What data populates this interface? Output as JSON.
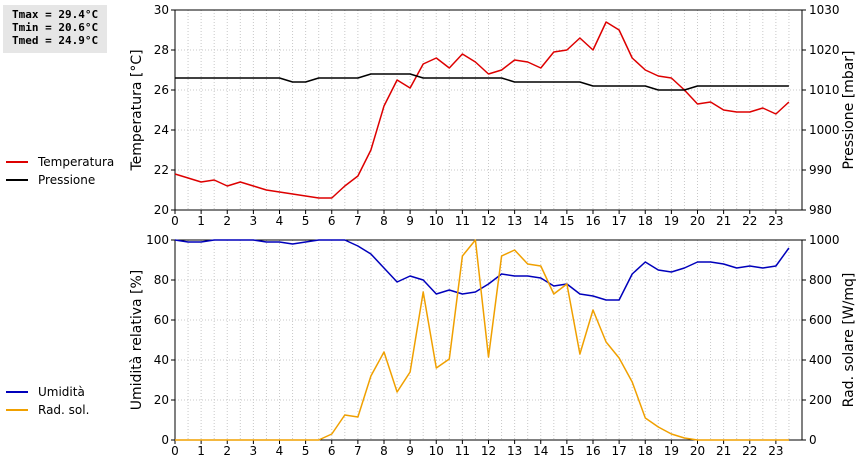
{
  "stats": {
    "tmax": "Tmax = 29.4°C",
    "tmin": "Tmin = 20.6°C",
    "tmed": "Tmed = 24.9°C"
  },
  "chart_data": [
    {
      "type": "line",
      "xlabel": "",
      "xlim": [
        0,
        24
      ],
      "x_ticks": [
        "0",
        "1",
        "2",
        "3",
        "4",
        "5",
        "6",
        "7",
        "8",
        "9",
        "10",
        "11",
        "12",
        "13",
        "14",
        "15",
        "16",
        "17",
        "18",
        "19",
        "20",
        "21",
        "22",
        "23"
      ],
      "y_left": {
        "label": "Temperatura [°C]",
        "lim": [
          20,
          30
        ],
        "ticks": [
          "20",
          "22",
          "24",
          "26",
          "28",
          "30"
        ]
      },
      "y_right": {
        "label": "Pressione [mbar]",
        "lim": [
          980,
          1030
        ],
        "ticks": [
          "980",
          "990",
          "1000",
          "1010",
          "1020",
          "1030"
        ]
      },
      "grid": true,
      "legend_placement": "left",
      "series": [
        {
          "name": "Temperatura",
          "axis": "left",
          "color": "#dd0000",
          "x": [
            0,
            0.5,
            1,
            1.5,
            2,
            2.5,
            3,
            3.5,
            4,
            4.5,
            5,
            5.5,
            6,
            6.5,
            7,
            7.5,
            8,
            8.5,
            9,
            9.5,
            10,
            10.5,
            11,
            11.5,
            12,
            12.5,
            13,
            13.5,
            14,
            14.5,
            15,
            15.5,
            16,
            16.5,
            17,
            17.5,
            18,
            18.5,
            19,
            19.5,
            20,
            20.5,
            21,
            21.5,
            22,
            22.5,
            23,
            23.5
          ],
          "values": [
            21.8,
            21.6,
            21.4,
            21.5,
            21.2,
            21.4,
            21.2,
            21.0,
            20.9,
            20.8,
            20.7,
            20.6,
            20.6,
            21.2,
            21.7,
            23.0,
            25.2,
            26.5,
            26.1,
            27.3,
            27.6,
            27.1,
            27.8,
            27.4,
            26.8,
            27.0,
            27.5,
            27.4,
            27.1,
            27.9,
            28.0,
            28.6,
            28.0,
            29.4,
            29.0,
            27.6,
            27.0,
            26.7,
            26.6,
            26.0,
            25.3,
            25.4,
            25.0,
            24.9,
            24.9,
            25.1,
            24.8,
            25.4
          ]
        },
        {
          "name": "Pressione",
          "axis": "right",
          "color": "#000000",
          "x": [
            0,
            0.5,
            1,
            1.5,
            2,
            2.5,
            3,
            3.5,
            4,
            4.5,
            5,
            5.5,
            6,
            6.5,
            7,
            7.5,
            8,
            8.5,
            9,
            9.5,
            10,
            10.5,
            11,
            11.5,
            12,
            12.5,
            13,
            13.5,
            14,
            14.5,
            15,
            15.5,
            16,
            16.5,
            17,
            17.5,
            18,
            18.5,
            19,
            19.5,
            20,
            20.5,
            21,
            21.5,
            22,
            22.5,
            23,
            23.5
          ],
          "values": [
            1013,
            1013,
            1013,
            1013,
            1013,
            1013,
            1013,
            1013,
            1013,
            1012,
            1012,
            1013,
            1013,
            1013,
            1013,
            1014,
            1014,
            1014,
            1014,
            1013,
            1013,
            1013,
            1013,
            1013,
            1013,
            1013,
            1012,
            1012,
            1012,
            1012,
            1012,
            1012,
            1011,
            1011,
            1011,
            1011,
            1011,
            1010,
            1010,
            1010,
            1011,
            1011,
            1011,
            1011,
            1011,
            1011,
            1011,
            1011
          ]
        }
      ]
    },
    {
      "type": "line",
      "xlabel": "",
      "xlim": [
        0,
        24
      ],
      "x_ticks": [
        "0",
        "1",
        "2",
        "3",
        "4",
        "5",
        "6",
        "7",
        "8",
        "9",
        "10",
        "11",
        "12",
        "13",
        "14",
        "15",
        "16",
        "17",
        "18",
        "19",
        "20",
        "21",
        "22",
        "23"
      ],
      "y_left": {
        "label": "Umidità relativa [%]",
        "lim": [
          0,
          100
        ],
        "ticks": [
          "0",
          "20",
          "40",
          "60",
          "80",
          "100"
        ]
      },
      "y_right": {
        "label": "Rad. solare [W/mq]",
        "lim": [
          0,
          1000
        ],
        "ticks": [
          "0",
          "200",
          "400",
          "600",
          "800",
          "1000"
        ]
      },
      "grid": true,
      "legend_placement": "left",
      "series": [
        {
          "name": "Umidità",
          "axis": "left",
          "color": "#0000bb",
          "x": [
            0,
            0.5,
            1,
            1.5,
            2,
            2.5,
            3,
            3.5,
            4,
            4.5,
            5,
            5.5,
            6,
            6.5,
            7,
            7.5,
            8,
            8.5,
            9,
            9.5,
            10,
            10.5,
            11,
            11.5,
            12,
            12.5,
            13,
            13.5,
            14,
            14.5,
            15,
            15.5,
            16,
            16.5,
            17,
            17.5,
            18,
            18.5,
            19,
            19.5,
            20,
            20.5,
            21,
            21.5,
            22,
            22.5,
            23,
            23.5
          ],
          "values": [
            100,
            99,
            99,
            100,
            100,
            100,
            100,
            99,
            99,
            98,
            99,
            100,
            100,
            100,
            97,
            93,
            86,
            79,
            82,
            80,
            73,
            75,
            73,
            74,
            78,
            83,
            82,
            82,
            81,
            77,
            78,
            73,
            72,
            70,
            70,
            83,
            89,
            85,
            84,
            86,
            89,
            89,
            88,
            86,
            87,
            86,
            87,
            96
          ]
        },
        {
          "name": "Rad. sol.",
          "axis": "right",
          "color": "#f0a000",
          "x": [
            0,
            0.5,
            1,
            1.5,
            2,
            2.5,
            3,
            3.5,
            4,
            4.5,
            5,
            5.5,
            6,
            6.5,
            7,
            7.5,
            8,
            8.5,
            9,
            9.5,
            10,
            10.5,
            11,
            11.5,
            12,
            12.5,
            13,
            13.5,
            14,
            14.5,
            15,
            15.5,
            16,
            16.5,
            17,
            17.5,
            18,
            18.5,
            19,
            19.5,
            20,
            20.5,
            21,
            21.5,
            22,
            22.5,
            23,
            23.5
          ],
          "values": [
            0,
            0,
            0,
            0,
            0,
            0,
            0,
            0,
            0,
            0,
            0,
            0,
            30,
            125,
            115,
            320,
            440,
            240,
            340,
            740,
            360,
            405,
            920,
            1000,
            415,
            920,
            950,
            880,
            870,
            730,
            780,
            430,
            650,
            490,
            410,
            290,
            110,
            65,
            30,
            10,
            0,
            0,
            0,
            0,
            0,
            0,
            0,
            0
          ]
        }
      ]
    }
  ]
}
